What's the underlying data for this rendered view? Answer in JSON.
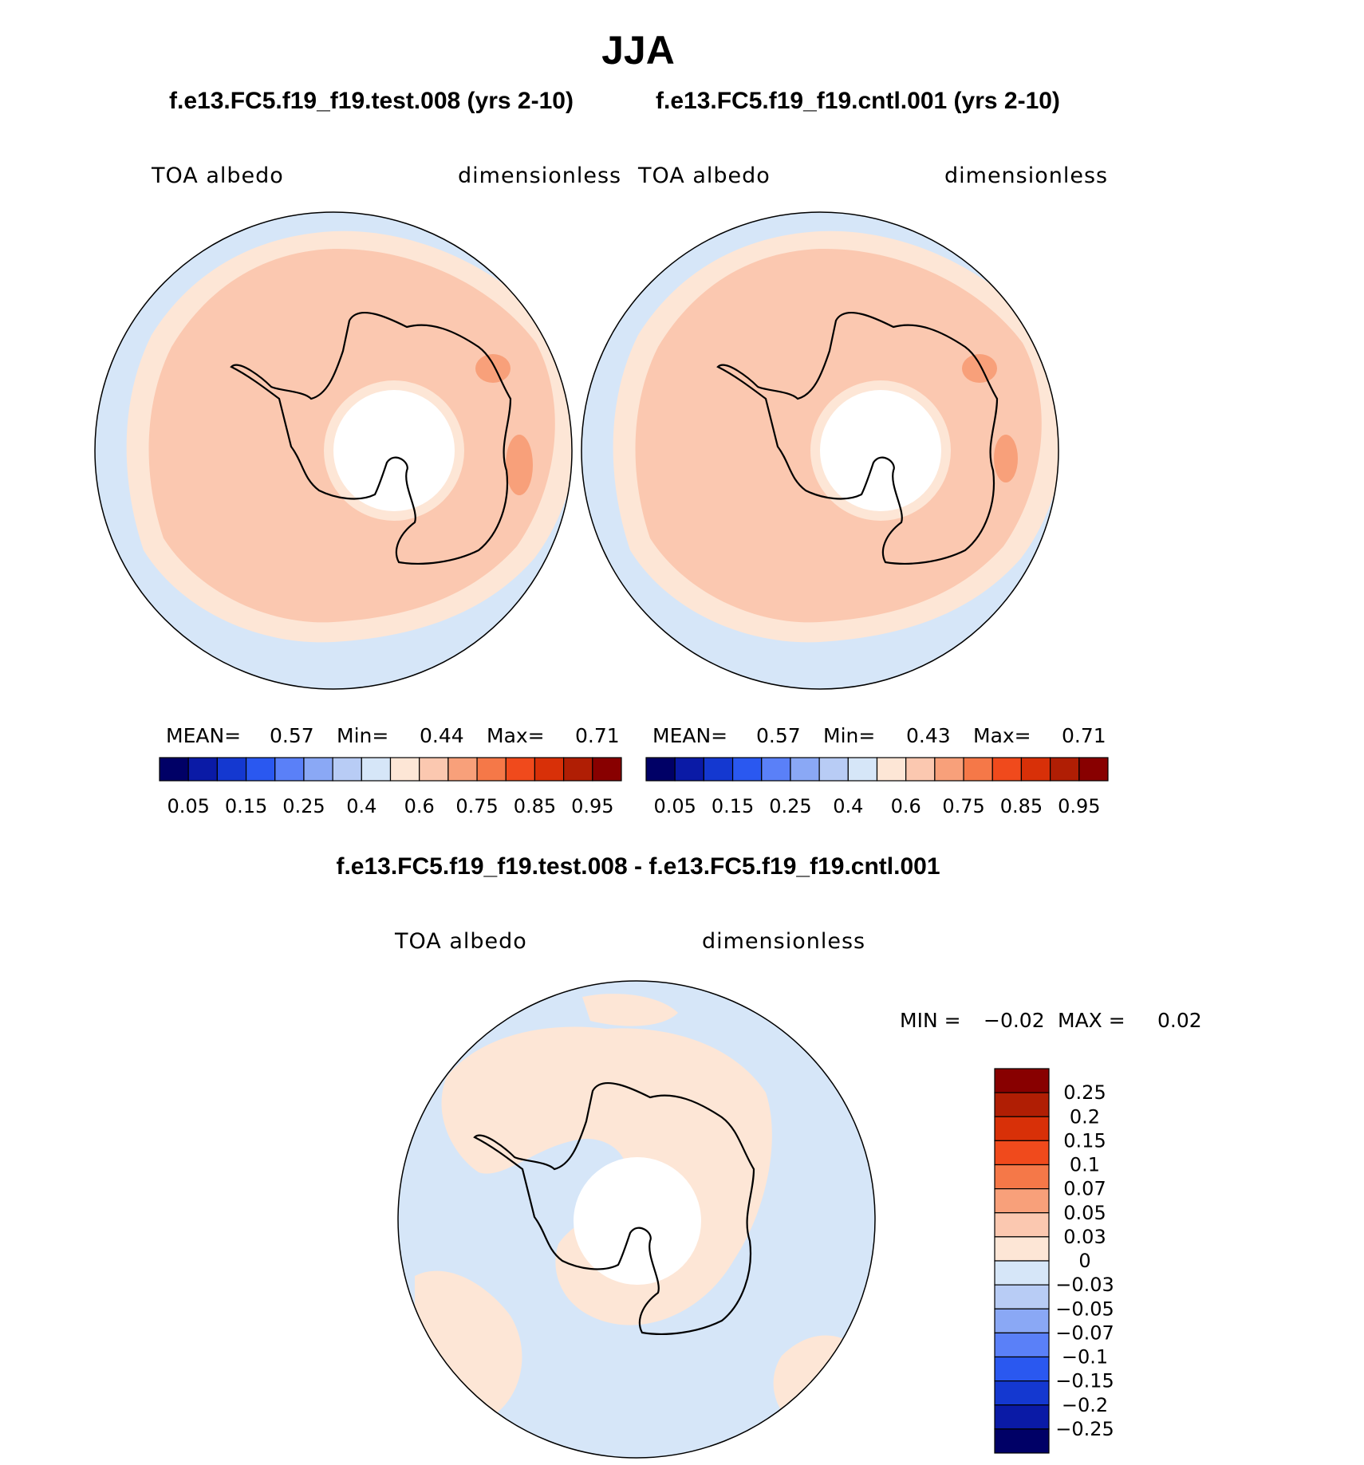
{
  "title": "JJA",
  "panels": [
    {
      "case": "f.e13.FC5.f19_f19.test.008 (yrs 2-10)",
      "variable": "TOA  albedo",
      "units": "dimensionless",
      "stats": {
        "mean_label": "MEAN=",
        "mean": "0.57",
        "min_label": "Min=",
        "min": "0.44",
        "max_label": "Max=",
        "max": "0.71"
      }
    },
    {
      "case": "f.e13.FC5.f19_f19.cntl.001 (yrs 2-10)",
      "variable": "TOA  albedo",
      "units": "dimensionless",
      "stats": {
        "mean_label": "MEAN=",
        "mean": "0.57",
        "min_label": "Min=",
        "min": "0.43",
        "max_label": "Max=",
        "max": "0.71"
      }
    }
  ],
  "colorbar": {
    "colors": [
      "#000066",
      "#0a1aa6",
      "#1438d0",
      "#2a58f0",
      "#5a80f8",
      "#8aa8f5",
      "#b8ccf5",
      "#d6e6f8",
      "#fde6d6",
      "#fbc8b0",
      "#f8a07a",
      "#f57848",
      "#f04a1c",
      "#d83008",
      "#b01e04",
      "#880000"
    ],
    "tick_labels": [
      "0.05",
      "0.15",
      "0.25",
      "0.4",
      "0.6",
      "0.75",
      "0.85",
      "0.95"
    ]
  },
  "difference": {
    "title": "f.e13.FC5.f19_f19.test.008 - f.e13.FC5.f19_f19.cntl.001",
    "variable": "TOA  albedo",
    "units": "dimensionless",
    "min_label": "MIN =",
    "min": "−0.02",
    "max_label": "MAX =",
    "max": "0.02",
    "colorbar": {
      "colors": [
        "#880000",
        "#b01e04",
        "#d83008",
        "#f04a1c",
        "#f57848",
        "#f8a07a",
        "#fbc8b0",
        "#fde6d6",
        "#d6e6f8",
        "#b8ccf5",
        "#8aa8f5",
        "#5a80f8",
        "#2a58f0",
        "#1438d0",
        "#0a1aa6",
        "#000066"
      ],
      "tick_labels": [
        "0.25",
        "0.2",
        "0.15",
        "0.1",
        "0.07",
        "0.05",
        "0.03",
        "0",
        "−0.03",
        "−0.05",
        "−0.07",
        "−0.1",
        "−0.15",
        "−0.2",
        "−0.25"
      ]
    }
  },
  "map_colors": {
    "ocean": "#d6e6f8",
    "ice_edge": "#fde6d6",
    "ice": "#fbc8b0",
    "high": "#f8a07a",
    "pole_hole": "#ffffff"
  }
}
